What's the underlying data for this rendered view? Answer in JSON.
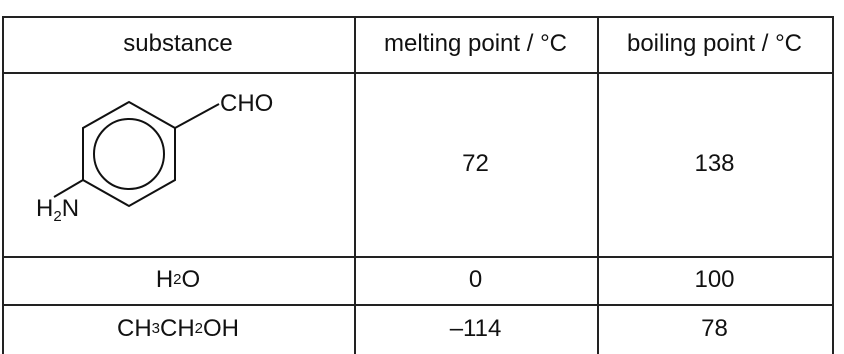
{
  "table": {
    "headers": {
      "substance": "substance",
      "melting_point": "melting point / °C",
      "boiling_point": "boiling point / °C"
    },
    "rows": [
      {
        "substance": {
          "type": "structure",
          "name": "4-aminobenzaldehyde",
          "labels": {
            "cho": "CHO",
            "h2n_h": "H",
            "h2n_sub": "2",
            "h2n_n": "N"
          }
        },
        "melting_point": "72",
        "boiling_point": "138"
      },
      {
        "substance": {
          "type": "formula",
          "parts": [
            "H",
            "2",
            "O"
          ]
        },
        "melting_point": "0",
        "boiling_point": "100"
      },
      {
        "substance": {
          "type": "formula",
          "parts": [
            "CH",
            "3",
            "CH",
            "2",
            "OH"
          ]
        },
        "melting_point": "–114",
        "boiling_point": "78"
      }
    ]
  }
}
